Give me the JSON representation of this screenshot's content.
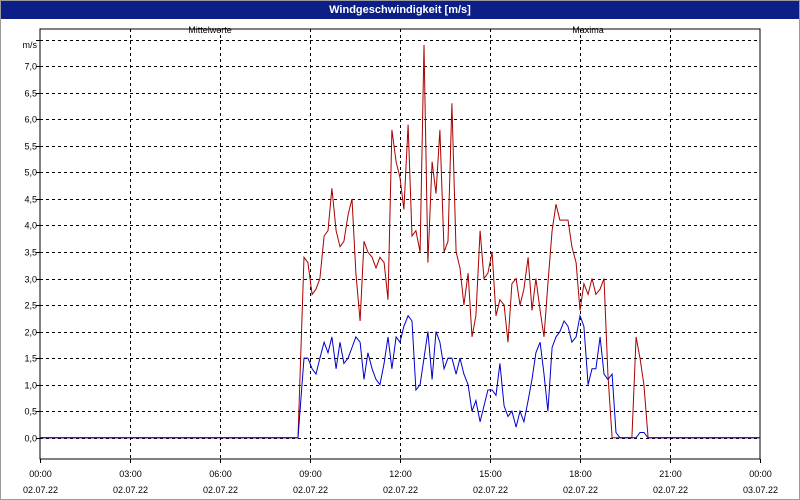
{
  "window": {
    "title": "Windgeschwindigkeit [m/s]"
  },
  "colors": {
    "titlebar": "#0b1f86",
    "series_mean": "#0000cc",
    "series_max": "#aa0000",
    "grid": "#000000"
  },
  "chart_data": {
    "type": "line",
    "title": "Windgeschwindigkeit [m/s]",
    "ylabel": "m/s",
    "xlabel": "",
    "ylim": [
      -0.4,
      7.7
    ],
    "xlim": [
      0,
      24
    ],
    "grid": true,
    "y_ticks": [
      "0,0",
      "0,5",
      "1,0",
      "1,5",
      "2,0",
      "2,5",
      "3,0",
      "3,5",
      "4,0",
      "4,5",
      "5,0",
      "5,5",
      "6,0",
      "6,5",
      "7,0"
    ],
    "x_ticks": [
      {
        "time": "00:00",
        "date": "02.07.22"
      },
      {
        "time": "03:00",
        "date": "02.07.22"
      },
      {
        "time": "06:00",
        "date": "02.07.22"
      },
      {
        "time": "09:00",
        "date": "02.07.22"
      },
      {
        "time": "12:00",
        "date": "02.07.22"
      },
      {
        "time": "15:00",
        "date": "02.07.22"
      },
      {
        "time": "18:00",
        "date": "02.07.22"
      },
      {
        "time": "21:00",
        "date": "02.07.22"
      },
      {
        "time": "00:00",
        "date": "03.07.22"
      }
    ],
    "series": [
      {
        "name": "Mittelwerte",
        "color": "#0000cc",
        "x": [
          0,
          8.6,
          8.8,
          8.93,
          9.07,
          9.2,
          9.33,
          9.47,
          9.6,
          9.73,
          9.87,
          10.0,
          10.13,
          10.27,
          10.4,
          10.53,
          10.67,
          10.8,
          10.93,
          11.07,
          11.2,
          11.33,
          11.47,
          11.6,
          11.73,
          11.87,
          12.0,
          12.13,
          12.27,
          12.4,
          12.53,
          12.67,
          12.8,
          12.93,
          13.07,
          13.2,
          13.33,
          13.47,
          13.6,
          13.73,
          13.87,
          14.0,
          14.13,
          14.27,
          14.4,
          14.53,
          14.67,
          14.8,
          14.93,
          15.07,
          15.2,
          15.33,
          15.47,
          15.6,
          15.73,
          15.87,
          16.0,
          16.13,
          16.27,
          16.4,
          16.53,
          16.67,
          16.8,
          16.93,
          17.07,
          17.2,
          17.33,
          17.47,
          17.6,
          17.73,
          17.87,
          18.0,
          18.13,
          18.27,
          18.4,
          18.53,
          18.67,
          18.8,
          18.93,
          19.07,
          19.2,
          19.33,
          19.47,
          19.6,
          19.73,
          19.87,
          20.0,
          20.13,
          20.27,
          20.4,
          20.53,
          20.67,
          20.8,
          20.93,
          21.07,
          21.2,
          21.33,
          21.47,
          21.6,
          21.73,
          21.87,
          22.0,
          22.13,
          22.27,
          22.4,
          22.53,
          22.67,
          24.0
        ],
        "y": [
          0.0,
          0.0,
          1.5,
          1.5,
          1.3,
          1.2,
          1.5,
          1.8,
          1.6,
          1.9,
          1.3,
          1.8,
          1.4,
          1.5,
          1.7,
          1.9,
          1.8,
          1.1,
          1.6,
          1.3,
          1.1,
          1.0,
          1.4,
          1.9,
          1.3,
          1.9,
          1.8,
          2.1,
          2.3,
          2.2,
          0.9,
          1.0,
          1.5,
          2.0,
          1.1,
          2.0,
          1.8,
          1.3,
          1.5,
          1.5,
          1.2,
          1.5,
          1.2,
          1.0,
          0.5,
          0.7,
          0.3,
          0.6,
          0.9,
          0.9,
          0.8,
          1.4,
          0.6,
          0.4,
          0.5,
          0.2,
          0.5,
          0.3,
          0.7,
          1.1,
          1.6,
          1.8,
          1.2,
          0.5,
          1.7,
          1.9,
          2.0,
          2.2,
          2.1,
          1.8,
          1.9,
          2.3,
          2.1,
          1.0,
          1.3,
          1.3,
          1.9,
          1.2,
          1.1,
          1.2,
          0.1,
          0.0,
          0.0,
          0.0,
          0.0,
          0.0,
          0.1,
          0.1,
          0.0,
          0.0,
          0.0,
          0.0,
          0.0,
          0.0,
          0.0,
          0.0,
          0.0,
          0.0,
          0.0,
          0.0,
          0.0,
          0.0,
          0.0,
          0.0,
          0.0,
          0.0,
          0.0,
          0.0
        ]
      },
      {
        "name": "Maxima",
        "color": "#aa0000",
        "x": [
          0,
          8.6,
          8.8,
          8.93,
          9.07,
          9.2,
          9.33,
          9.47,
          9.6,
          9.73,
          9.87,
          10.0,
          10.13,
          10.27,
          10.4,
          10.53,
          10.67,
          10.8,
          10.93,
          11.07,
          11.2,
          11.33,
          11.47,
          11.6,
          11.73,
          11.87,
          12.0,
          12.13,
          12.27,
          12.4,
          12.53,
          12.67,
          12.8,
          12.93,
          13.07,
          13.2,
          13.33,
          13.47,
          13.6,
          13.73,
          13.87,
          14.0,
          14.13,
          14.27,
          14.4,
          14.53,
          14.67,
          14.8,
          14.93,
          15.07,
          15.2,
          15.33,
          15.47,
          15.6,
          15.73,
          15.87,
          16.0,
          16.13,
          16.27,
          16.4,
          16.53,
          16.67,
          16.8,
          16.93,
          17.07,
          17.2,
          17.33,
          17.47,
          17.6,
          17.73,
          17.87,
          18.0,
          18.13,
          18.27,
          18.4,
          18.53,
          18.67,
          18.8,
          18.93,
          19.07,
          19.2,
          19.33,
          19.47,
          19.6,
          19.73,
          19.87,
          20.0,
          20.13,
          20.27,
          20.4,
          20.53,
          20.67,
          20.8,
          20.93,
          21.07,
          21.2,
          21.33,
          21.47,
          21.6,
          21.73,
          21.87,
          22.0,
          22.13,
          22.27,
          22.4,
          22.53,
          22.67,
          24.0
        ],
        "y": [
          0.0,
          0.0,
          3.4,
          3.3,
          2.7,
          2.8,
          3.0,
          3.8,
          3.9,
          4.7,
          3.9,
          3.6,
          3.7,
          4.2,
          4.5,
          3.1,
          2.2,
          3.7,
          3.5,
          3.4,
          3.2,
          3.4,
          3.3,
          2.6,
          5.8,
          5.2,
          4.9,
          4.3,
          5.9,
          3.8,
          3.9,
          3.5,
          7.4,
          3.3,
          5.2,
          4.6,
          5.8,
          3.5,
          3.7,
          6.3,
          3.5,
          3.2,
          2.5,
          3.1,
          1.9,
          2.3,
          3.9,
          3.0,
          3.1,
          3.5,
          2.3,
          2.6,
          2.5,
          1.8,
          2.9,
          3.0,
          2.5,
          2.8,
          3.4,
          2.4,
          3.0,
          2.4,
          1.9,
          2.9,
          3.9,
          4.4,
          4.1,
          4.1,
          4.1,
          3.6,
          3.3,
          2.4,
          2.9,
          2.7,
          3.0,
          2.7,
          2.8,
          3.0,
          1.2,
          0.0,
          0.0,
          0.0,
          0.0,
          0.0,
          0.0,
          1.9,
          1.5,
          1.0,
          0.0,
          0.0,
          0.0,
          0.0,
          0.0,
          0.0,
          0.0,
          0.0,
          0.0,
          0.0,
          0.0,
          0.0,
          0.0,
          0.0,
          0.0,
          0.0,
          0.0,
          0.0,
          0.0,
          0.0
        ]
      }
    ]
  }
}
